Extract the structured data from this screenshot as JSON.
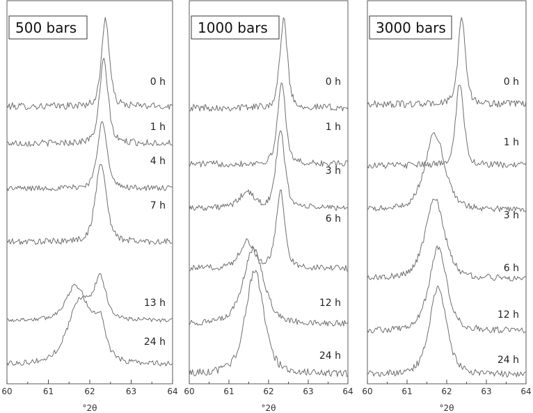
{
  "chart_data": [
    {
      "type": "line",
      "title": "500 bars",
      "xlabel": "°2θ",
      "xlim": [
        60,
        64
      ],
      "x_ticks": [
        "60",
        "61",
        "62",
        "63",
        "64"
      ],
      "series": [
        {
          "name": "0 h",
          "peaks": [
            {
              "center": 62.38,
              "height": 1.0,
              "width": 0.1
            }
          ]
        },
        {
          "name": "1 h",
          "peaks": [
            {
              "center": 62.34,
              "height": 1.0,
              "width": 0.11
            }
          ]
        },
        {
          "name": "4 h",
          "peaks": [
            {
              "center": 62.3,
              "height": 1.0,
              "width": 0.12
            }
          ]
        },
        {
          "name": "7 h",
          "peaks": [
            {
              "center": 62.27,
              "height": 1.0,
              "width": 0.14
            }
          ]
        },
        {
          "name": "13 h",
          "peaks": [
            {
              "center": 62.25,
              "height": 0.75,
              "width": 0.16
            },
            {
              "center": 61.65,
              "height": 0.6,
              "width": 0.25
            }
          ]
        },
        {
          "name": "24 h",
          "peaks": [
            {
              "center": 61.78,
              "height": 0.95,
              "width": 0.32
            },
            {
              "center": 62.25,
              "height": 0.45,
              "width": 0.14
            }
          ]
        }
      ]
    },
    {
      "type": "line",
      "title": "1000 bars",
      "xlabel": "°2θ",
      "xlim": [
        60,
        64
      ],
      "x_ticks": [
        "60",
        "61",
        "62",
        "63",
        "64"
      ],
      "series": [
        {
          "name": "0 h",
          "peaks": [
            {
              "center": 62.38,
              "height": 1.0,
              "width": 0.1
            }
          ]
        },
        {
          "name": "1 h",
          "peaks": [
            {
              "center": 62.33,
              "height": 1.0,
              "width": 0.11
            }
          ]
        },
        {
          "name": "3 h",
          "peaks": [
            {
              "center": 62.3,
              "height": 1.0,
              "width": 0.12
            },
            {
              "center": 61.45,
              "height": 0.2,
              "width": 0.2
            }
          ]
        },
        {
          "name": "6 h",
          "peaks": [
            {
              "center": 62.3,
              "height": 1.0,
              "width": 0.12
            },
            {
              "center": 61.45,
              "height": 0.35,
              "width": 0.2
            }
          ]
        },
        {
          "name": "12 h",
          "peaks": [
            {
              "center": 61.62,
              "height": 1.0,
              "width": 0.28
            }
          ]
        },
        {
          "name": "24 h",
          "peaks": [
            {
              "center": 61.65,
              "height": 1.15,
              "width": 0.25
            }
          ]
        }
      ]
    },
    {
      "type": "line",
      "title": "3000 bars",
      "xlabel": "°2θ",
      "xlim": [
        60,
        64
      ],
      "x_ticks": [
        "60",
        "61",
        "62",
        "63",
        "64"
      ],
      "series": [
        {
          "name": "0 h",
          "peaks": [
            {
              "center": 62.38,
              "height": 1.0,
              "width": 0.1
            }
          ]
        },
        {
          "name": "1 h",
          "peaks": [
            {
              "center": 62.33,
              "height": 1.0,
              "width": 0.11
            }
          ]
        },
        {
          "name": "3 h",
          "peaks": [
            {
              "center": 61.7,
              "height": 1.0,
              "width": 0.27
            }
          ]
        },
        {
          "name": "6 h",
          "peaks": [
            {
              "center": 61.7,
              "height": 1.0,
              "width": 0.26
            }
          ]
        },
        {
          "name": "12 h",
          "peaks": [
            {
              "center": 61.78,
              "height": 1.0,
              "width": 0.24
            }
          ]
        },
        {
          "name": "24 h",
          "peaks": [
            {
              "center": 61.78,
              "height": 1.05,
              "width": 0.23
            }
          ]
        }
      ]
    }
  ]
}
